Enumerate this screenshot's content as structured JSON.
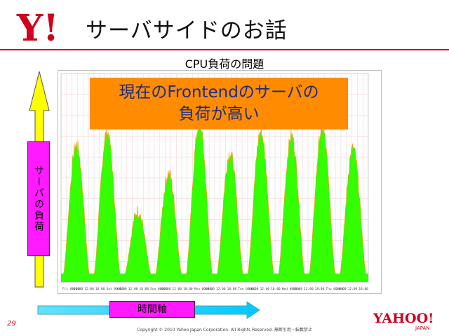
{
  "header": {
    "title": "サーバサイドのお話",
    "logo_text": "Y!",
    "accent": "#d0021b"
  },
  "subtitle": "CPU負荷の問題",
  "callout": {
    "line1": "現在のFrontendのサーバの",
    "line2": "負荷が高い",
    "bg": "#ff8c00",
    "color": "#1a2a8a"
  },
  "axis": {
    "y_label": "サーバの負荷",
    "x_label": "時間軸",
    "highlight": "#ff1aff"
  },
  "footer": {
    "page": "29",
    "copyright": "Copyright © 2010 Yahoo Japan Corporation. All Rights Reserved. 無断引用・転載禁止",
    "logo_text": "YAHOO!",
    "logo_sub": "JAPAN"
  },
  "chart_data": {
    "type": "area",
    "fill": "#33ff00",
    "edge": "#ff9900",
    "x_tick_labels": [
      "Fri 00:00",
      "06:00",
      "12:00",
      "18:00",
      "Sat 00:00",
      "06:00",
      "12:00",
      "18:00",
      "Sun 00:00",
      "06:00",
      "12:00",
      "18:00",
      "Mon 00:00",
      "06:00",
      "12:00",
      "18:00",
      "Tue 00:00",
      "06:00",
      "12:00",
      "18:00",
      "Wed 00:00",
      "06:00",
      "12:00",
      "18:00",
      "Thu 00:00",
      "06:00",
      "12:00",
      "18:00"
    ],
    "peaks": [
      0.62,
      0.68,
      0.3,
      0.48,
      0.72,
      0.58,
      0.68,
      0.66,
      0.7,
      0.6
    ]
  }
}
